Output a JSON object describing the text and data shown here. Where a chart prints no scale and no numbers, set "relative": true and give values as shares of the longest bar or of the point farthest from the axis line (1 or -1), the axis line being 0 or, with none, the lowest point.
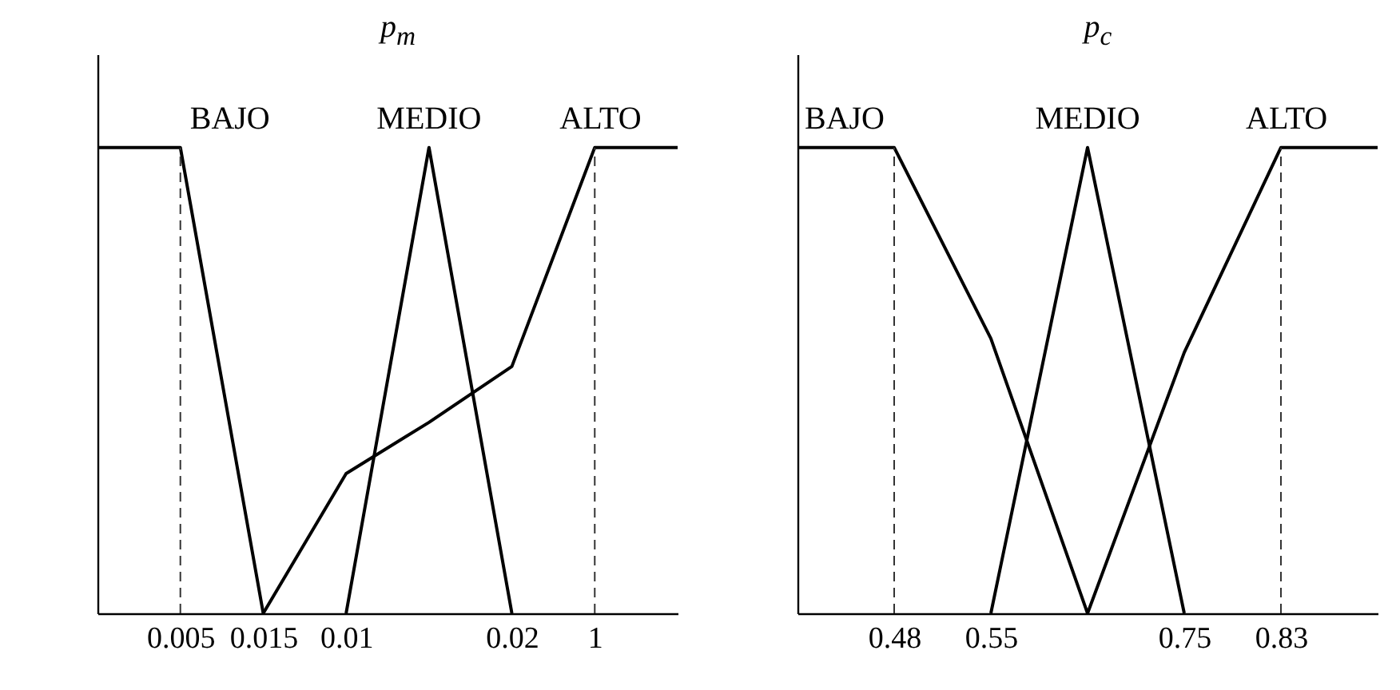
{
  "chart_data": [
    {
      "type": "line",
      "title": "p$_{m}$",
      "relative": true,
      "tick_labels": "x",
      "categories": [
        null,
        "0.005",
        "0.015",
        "0.01",
        null,
        "0.02",
        "1",
        null
      ],
      "series": [
        {
          "name": "BAJO",
          "color": "#000000",
          "values": [
            1,
            1,
            0,
            null,
            null,
            null,
            null,
            null
          ]
        },
        {
          "name": "MEDIO",
          "color": "#000000",
          "values": [
            null,
            null,
            null,
            0,
            1,
            0,
            null,
            null
          ]
        },
        {
          "name": "ALTO",
          "color": "#000000",
          "values": [
            null,
            null,
            0,
            0.3,
            0.41,
            0.53,
            1,
            1
          ]
        }
      ],
      "ref_lines": [
        {
          "axis": "x",
          "value": "0.005",
          "line_style": "dashed",
          "color": "#333333"
        },
        {
          "axis": "x",
          "value": "1",
          "line_style": "dashed",
          "color": "#333333"
        }
      ]
    },
    {
      "type": "line",
      "title": "p$_{c}$",
      "relative": true,
      "tick_labels": "x",
      "categories": [
        null,
        "0.48",
        "0.55",
        null,
        "0.75",
        "0.83",
        null
      ],
      "series": [
        {
          "name": "BAJO",
          "color": "#000000",
          "values": [
            1,
            1,
            0.59,
            0,
            null,
            null,
            null
          ]
        },
        {
          "name": "MEDIO",
          "color": "#000000",
          "values": [
            null,
            null,
            0,
            1,
            0,
            null,
            null
          ]
        },
        {
          "name": "ALTO",
          "color": "#000000",
          "values": [
            null,
            null,
            null,
            0,
            0.56,
            1,
            1
          ]
        }
      ],
      "ref_lines": [
        {
          "axis": "x",
          "value": "0.48",
          "line_style": "dashed",
          "color": "#333333"
        },
        {
          "axis": "x",
          "value": "0.83",
          "line_style": "dashed",
          "color": "#333333"
        }
      ]
    }
  ]
}
